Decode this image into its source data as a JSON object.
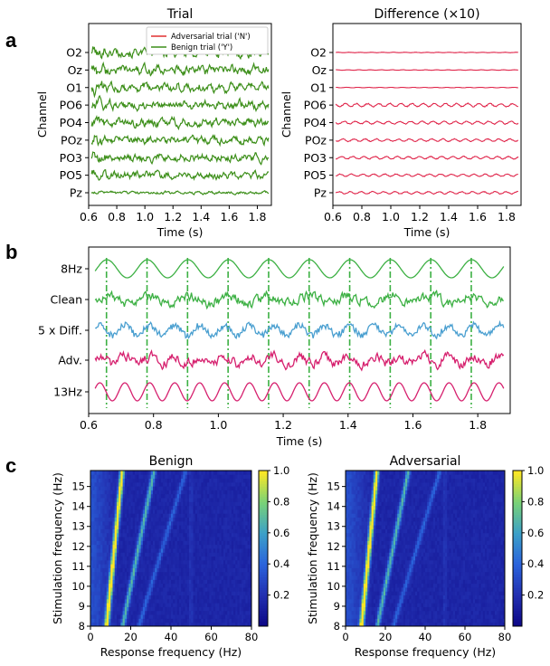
{
  "panel_letters": {
    "a": "a",
    "b": "b",
    "c": "c"
  },
  "chart_data": [
    {
      "type": "line",
      "panel": "a-left",
      "title": "Trial",
      "xlabel": "Time (s)",
      "ylabel": "Channel",
      "xlim": [
        0.6,
        1.9
      ],
      "xticks": [
        "0.6",
        "0.8",
        "1.0",
        "1.2",
        "1.4",
        "1.6",
        "1.8"
      ],
      "channels": [
        "O2",
        "Oz",
        "O1",
        "PO6",
        "PO4",
        "POz",
        "PO3",
        "PO5",
        "Pz"
      ],
      "amplitudes": [
        1.0,
        1.0,
        1.0,
        0.95,
        0.9,
        0.85,
        0.85,
        0.8,
        0.3
      ],
      "legend": {
        "location": "top-right",
        "entries": [
          {
            "label": "Adversarial trial ('N')",
            "color": "#e03030"
          },
          {
            "label": "Benign trial ('Y')",
            "color": "#3d8f1a"
          }
        ]
      },
      "colors": {
        "benign": "#3d8f1a",
        "adversarial": "#e03030"
      }
    },
    {
      "type": "line",
      "panel": "a-right",
      "title": "Difference (×10)",
      "xlabel": "Time (s)",
      "ylabel": "Channel",
      "xlim": [
        0.6,
        1.9
      ],
      "xticks": [
        "0.6",
        "0.8",
        "1.0",
        "1.2",
        "1.4",
        "1.6",
        "1.8"
      ],
      "channels": [
        "O2",
        "Oz",
        "O1",
        "PO6",
        "PO4",
        "POz",
        "PO3",
        "PO5",
        "Pz"
      ],
      "amplitudes": [
        0.1,
        0.1,
        0.1,
        0.7,
        0.6,
        0.55,
        0.55,
        0.5,
        0.5
      ],
      "color": "#e0254a"
    },
    {
      "type": "line",
      "panel": "b",
      "xlabel": "Time (s)",
      "xlim": [
        0.6,
        1.9
      ],
      "xticks": [
        "0.6",
        "0.8",
        "1.0",
        "1.2",
        "1.4",
        "1.6",
        "1.8"
      ],
      "series": [
        {
          "name": "8Hz",
          "color": "#3cb043",
          "frequency_hz": 8
        },
        {
          "name": "Clean",
          "color": "#3cb043"
        },
        {
          "name": "5 x Diff.",
          "color": "#4a9fd0"
        },
        {
          "name": "Adv.",
          "color": "#d6206e"
        },
        {
          "name": "13Hz",
          "color": "#d6206e",
          "frequency_hz": 13
        }
      ],
      "vlines": [
        0.655,
        0.78,
        0.905,
        1.03,
        1.155,
        1.28,
        1.405,
        1.53,
        1.655,
        1.78
      ],
      "vline_color": "#3cb043"
    },
    {
      "type": "heatmap",
      "panel": "c-left",
      "title": "Benign",
      "xlabel": "Response frequency (Hz)",
      "ylabel": "Stimulation frequency (Hz)",
      "xlim": [
        0,
        80
      ],
      "ylim": [
        8,
        15.8
      ],
      "xticks": [
        "0",
        "20",
        "40",
        "60",
        "80"
      ],
      "yticks": [
        "8",
        "9",
        "10",
        "11",
        "12",
        "13",
        "14",
        "15"
      ],
      "harmonics": [
        1,
        2,
        3
      ],
      "colorbar": {
        "range": [
          0,
          1.0
        ],
        "ticks": [
          "0.2",
          "0.4",
          "0.6",
          "0.8",
          "1.0"
        ]
      }
    },
    {
      "type": "heatmap",
      "panel": "c-right",
      "title": "Adversarial",
      "xlabel": "Response frequency (Hz)",
      "ylabel": "Stimulation frequency (Hz)",
      "xlim": [
        0,
        80
      ],
      "ylim": [
        8,
        15.8
      ],
      "xticks": [
        "0",
        "20",
        "40",
        "60",
        "80"
      ],
      "yticks": [
        "8",
        "9",
        "10",
        "11",
        "12",
        "13",
        "14",
        "15"
      ],
      "harmonics": [
        1,
        2,
        3
      ],
      "colorbar": {
        "range": [
          0,
          1.0
        ],
        "ticks": [
          "0.2",
          "0.4",
          "0.6",
          "0.8",
          "1.0"
        ]
      }
    }
  ]
}
